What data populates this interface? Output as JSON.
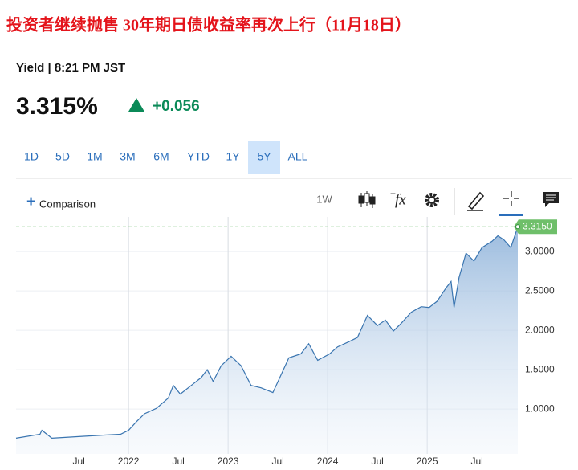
{
  "headline": "投资者继续抛售 30年期日债收益率再次上行（11月18日）",
  "quote": {
    "label": "Yield | 8:21 PM JST",
    "price": "3.315%",
    "change": "+0.056"
  },
  "ranges": [
    "1D",
    "5D",
    "1M",
    "3M",
    "6M",
    "YTD",
    "1Y",
    "5Y",
    "ALL"
  ],
  "toolbar": {
    "comparison": "Comparison",
    "interval": "1W",
    "studies": "fx"
  },
  "chart_data": {
    "type": "area",
    "x": [
      2020.87,
      2021.11,
      2021.13,
      2021.23,
      2021.5,
      2021.76,
      2021.92,
      2022,
      2022.08,
      2022.16,
      2022.28,
      2022.4,
      2022.45,
      2022.52,
      2022.65,
      2022.73,
      2022.79,
      2022.85,
      2022.93,
      2023.03,
      2023.13,
      2023.23,
      2023.33,
      2023.45,
      2023.52,
      2023.61,
      2023.73,
      2023.81,
      2023.9,
      2024.02,
      2024.1,
      2024.22,
      2024.3,
      2024.4,
      2024.5,
      2024.58,
      2024.66,
      2024.74,
      2024.84,
      2024.94,
      2025.02,
      2025.1,
      2025.19,
      2025.24,
      2025.27,
      2025.32,
      2025.39,
      2025.47,
      2025.55,
      2025.65,
      2025.71,
      2025.77,
      2025.84,
      2025.91
    ],
    "values": [
      0.63,
      0.68,
      0.73,
      0.63,
      0.65,
      0.67,
      0.68,
      0.73,
      0.84,
      0.94,
      1.01,
      1.14,
      1.3,
      1.19,
      1.32,
      1.4,
      1.5,
      1.35,
      1.55,
      1.67,
      1.55,
      1.3,
      1.27,
      1.21,
      1.4,
      1.65,
      1.7,
      1.83,
      1.62,
      1.7,
      1.79,
      1.86,
      1.91,
      2.19,
      2.06,
      2.13,
      1.99,
      2.09,
      2.23,
      2.3,
      2.29,
      2.37,
      2.54,
      2.62,
      2.29,
      2.67,
      2.98,
      2.88,
      3.05,
      3.13,
      3.2,
      3.15,
      3.05,
      3.315
    ],
    "last_value_label": "3.3150",
    "color": "#3a75b0",
    "xlim": [
      2020.87,
      2025.91
    ],
    "ylim": [
      0.43,
      3.44
    ],
    "xticks": [
      {
        "value": 2021.5,
        "label": "Jul"
      },
      2022,
      {
        "value": 2022.5,
        "label": "Jul"
      },
      2023,
      {
        "value": 2023.5,
        "label": "Jul"
      },
      2024,
      {
        "value": 2024.5,
        "label": "Jul"
      },
      2025,
      {
        "value": 2025.5,
        "label": "Jul"
      }
    ],
    "yticks": [
      {
        "value": 1,
        "label": "1.0000"
      },
      {
        "value": 1.5,
        "label": "1.5000"
      },
      {
        "value": 2,
        "label": "2.0000"
      },
      {
        "value": 2.5,
        "label": "2.5000"
      },
      {
        "value": 3,
        "label": "3.0000"
      }
    ],
    "grid": true
  }
}
